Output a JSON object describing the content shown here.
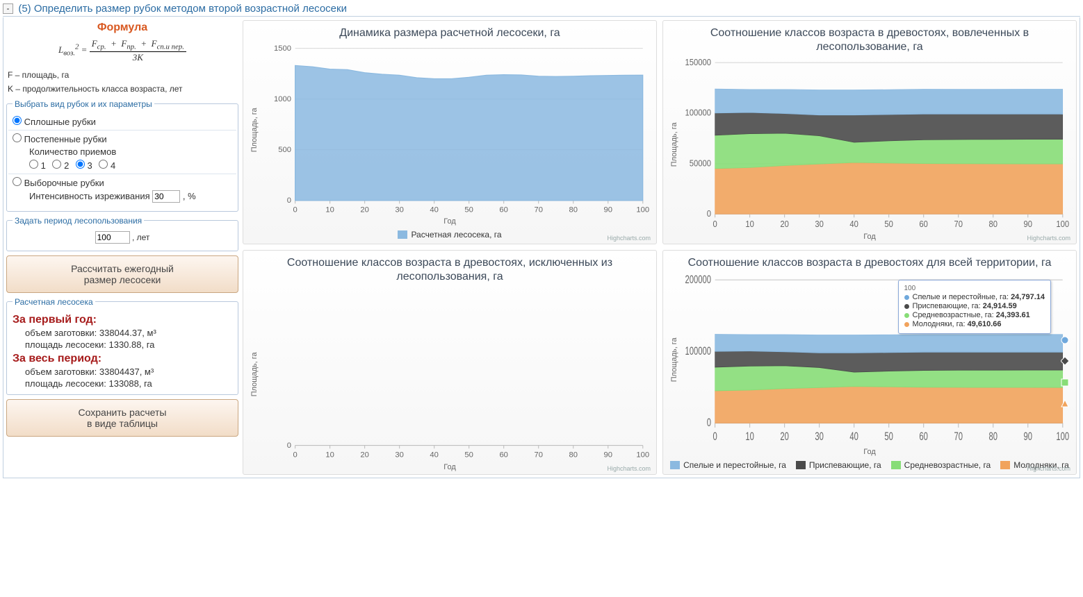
{
  "header": {
    "collapse_glyph": "-",
    "title": "(5) Определить размер рубок методом второй возрастной лесосеки"
  },
  "formula": {
    "heading": "Формула",
    "lhs": "L",
    "lhs_sub": "воз.",
    "lhs_sup": "2",
    "n1": "F",
    "n1s": "ср.",
    "n2": "F",
    "n2s": "пр.",
    "n3": "F",
    "n3s": "сп.и пер.",
    "den_coef": "3",
    "den_var": "K",
    "def1": "F – площадь, га",
    "def2": "K – продолжительность класса возраста, лет"
  },
  "fs1": {
    "legend": "Выбрать вид рубок и их параметры",
    "opt1": "Сплошные рубки",
    "opt2": "Постепенные рубки",
    "sub2_label": "Количество приемов",
    "priem_options": [
      "1",
      "2",
      "3",
      "4"
    ],
    "priem_selected": "3",
    "opt3": "Выборочные рубки",
    "sub3_label": "Интенсивность изреживания",
    "sub3_value": "30",
    "sub3_unit": ", %"
  },
  "fs_period": {
    "legend": "Задать период лесопользования",
    "value": "100",
    "unit": ", лет"
  },
  "btn_calc": "Рассчитать ежегодный\nразмер лесосеки",
  "results": {
    "legend": "Расчетная лесосека",
    "h1": "За первый год:",
    "r1a": "объем заготовки: 338044.37, м³",
    "r1b": "площадь лесосеки: 1330.88, га",
    "h2": "За весь период:",
    "r2a": "объем заготовки: 33804437, м³",
    "r2b": "площадь лесосеки: 133088, га"
  },
  "btn_save": "Сохранить расчеты\nв виде таблицы",
  "credit": "Highcharts.com",
  "x_label": "Год",
  "y_label": "Площадь, га",
  "x_ticks": [
    0,
    10,
    20,
    30,
    40,
    50,
    60,
    70,
    80,
    90,
    100
  ],
  "colors": {
    "blue": "#8bb9e0",
    "darkgray": "#4a4a4a",
    "green": "#87dd77",
    "orange": "#f1a35c",
    "blue_line": "#6fa8dc"
  },
  "chart1": {
    "title": "Динамика размера расчетной лесосеки, га",
    "ylim": [
      0,
      1500
    ],
    "ytick_step": 500,
    "series_name": "Расчетная лесосека, га",
    "color": "#8bb9e0",
    "values": [
      1331,
      1318,
      1295,
      1290,
      1260,
      1245,
      1235,
      1210,
      1200,
      1200,
      1215,
      1235,
      1240,
      1238,
      1225,
      1222,
      1225,
      1230,
      1233,
      1235,
      1236
    ]
  },
  "chart2": {
    "title": "Соотношение классов возраста в древостоях, вовлеченных в лесопользование, га",
    "ylim": [
      0,
      150000
    ],
    "ytick_step": 50000,
    "stack": [
      {
        "name": "Молодняки, га",
        "color": "#f1a35c",
        "v": [
          45000,
          46000,
          48000,
          49500,
          51000,
          50500,
          50000,
          49800,
          49700,
          49650,
          49611
        ]
      },
      {
        "name": "Средневозрастные, га",
        "color": "#87dd77",
        "v": [
          33000,
          33500,
          32000,
          28000,
          20000,
          22000,
          23500,
          24000,
          24200,
          24350,
          24394
        ]
      },
      {
        "name": "Приспевающие, га",
        "color": "#4a4a4a",
        "v": [
          22000,
          21000,
          19500,
          20500,
          27000,
          26000,
          25500,
          25200,
          25050,
          24970,
          24915
        ]
      },
      {
        "name": "Спелые и перестойные, га",
        "color": "#8bb9e0",
        "v": [
          24000,
          23000,
          24000,
          25000,
          25000,
          24800,
          24700,
          24650,
          24700,
          24750,
          24797
        ]
      }
    ]
  },
  "chart3": {
    "title": "Соотношение классов возраста в древостоях, исключенных из лесопользования, га",
    "ylim": [
      0,
      1
    ],
    "yticks": [
      0
    ],
    "empty": true
  },
  "chart4": {
    "title": "Соотношение классов возраста в древостоях для всей территории, га",
    "ylim": [
      0,
      200000
    ],
    "ytick_step": 100000,
    "stack_ref": "chart2",
    "legend_items": [
      {
        "label": "Спелые и перестойные, га",
        "color": "#8bb9e0"
      },
      {
        "label": "Приспевающие, га",
        "color": "#4a4a4a"
      },
      {
        "label": "Средневозрастные, га",
        "color": "#87dd77"
      },
      {
        "label": "Молодняки, га",
        "color": "#f1a35c"
      }
    ],
    "tooltip": {
      "x": "100",
      "rows": [
        {
          "color": "#6fa8dc",
          "label": "Спелые и перестойные, га:",
          "value": "24,797.14"
        },
        {
          "color": "#4a4a4a",
          "label": "Приспевающие, га:",
          "value": "24,914.59"
        },
        {
          "color": "#87dd77",
          "label": "Средневозрастные, га:",
          "value": "24,393.61"
        },
        {
          "color": "#f1a35c",
          "label": "Молодняки, га:",
          "value": "49,610.66"
        }
      ]
    }
  }
}
